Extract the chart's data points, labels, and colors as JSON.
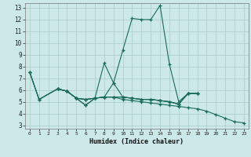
{
  "xlabel": "Humidex (Indice chaleur)",
  "bg_color": "#cce8e8",
  "grid_color": "#aacccc",
  "line_color": "#1a6b5a",
  "xlim": [
    -0.5,
    23.5
  ],
  "ylim": [
    2.7,
    13.4
  ],
  "xticks": [
    0,
    1,
    2,
    3,
    4,
    5,
    6,
    7,
    8,
    9,
    10,
    11,
    12,
    13,
    14,
    15,
    16,
    17,
    18,
    19,
    20,
    21,
    22,
    23
  ],
  "yticks": [
    3,
    4,
    5,
    6,
    7,
    8,
    9,
    10,
    11,
    12,
    13
  ],
  "series1": [
    [
      0,
      7.5
    ],
    [
      1,
      5.2
    ],
    [
      3,
      6.1
    ],
    [
      4,
      5.9
    ],
    [
      5,
      5.3
    ],
    [
      6,
      5.2
    ],
    [
      7,
      5.3
    ],
    [
      8,
      8.3
    ],
    [
      9,
      6.6
    ],
    [
      10,
      9.4
    ],
    [
      11,
      12.1
    ],
    [
      12,
      12.0
    ],
    [
      13,
      12.0
    ],
    [
      14,
      13.2
    ],
    [
      15,
      8.2
    ],
    [
      16,
      5.0
    ],
    [
      17,
      5.7
    ],
    [
      18,
      5.7
    ]
  ],
  "series2": [
    [
      0,
      7.5
    ],
    [
      1,
      5.2
    ],
    [
      3,
      6.1
    ],
    [
      4,
      5.9
    ],
    [
      5,
      5.3
    ],
    [
      6,
      4.7
    ],
    [
      7,
      5.3
    ],
    [
      8,
      5.4
    ],
    [
      9,
      6.6
    ],
    [
      10,
      5.4
    ],
    [
      11,
      5.3
    ],
    [
      12,
      5.2
    ],
    [
      13,
      5.2
    ],
    [
      14,
      5.1
    ],
    [
      15,
      5.0
    ],
    [
      16,
      4.8
    ],
    [
      17,
      5.7
    ],
    [
      18,
      5.7
    ]
  ],
  "series3": [
    [
      3,
      6.1
    ],
    [
      4,
      5.9
    ],
    [
      5,
      5.3
    ],
    [
      6,
      5.2
    ],
    [
      7,
      5.3
    ],
    [
      8,
      5.4
    ],
    [
      9,
      5.4
    ],
    [
      10,
      5.4
    ],
    [
      11,
      5.3
    ],
    [
      12,
      5.2
    ],
    [
      13,
      5.2
    ],
    [
      14,
      5.1
    ],
    [
      15,
      5.0
    ],
    [
      16,
      4.8
    ],
    [
      17,
      5.7
    ],
    [
      18,
      5.7
    ]
  ],
  "series4": [
    [
      3,
      6.1
    ],
    [
      4,
      5.9
    ],
    [
      5,
      5.3
    ],
    [
      6,
      5.2
    ],
    [
      7,
      5.3
    ],
    [
      8,
      5.4
    ],
    [
      9,
      5.4
    ],
    [
      10,
      5.4
    ],
    [
      11,
      5.3
    ],
    [
      12,
      5.2
    ],
    [
      13,
      5.2
    ],
    [
      14,
      5.1
    ],
    [
      15,
      5.0
    ],
    [
      16,
      4.8
    ],
    [
      17,
      5.7
    ],
    [
      18,
      5.7
    ]
  ],
  "series5": [
    [
      0,
      7.5
    ],
    [
      1,
      5.2
    ],
    [
      3,
      6.1
    ],
    [
      4,
      5.9
    ],
    [
      5,
      5.3
    ],
    [
      6,
      4.7
    ],
    [
      7,
      5.3
    ],
    [
      8,
      5.4
    ],
    [
      9,
      5.4
    ],
    [
      10,
      5.2
    ],
    [
      11,
      5.1
    ],
    [
      12,
      5.0
    ],
    [
      13,
      4.9
    ],
    [
      14,
      4.8
    ],
    [
      15,
      4.7
    ],
    [
      16,
      4.6
    ],
    [
      17,
      4.5
    ],
    [
      18,
      4.4
    ],
    [
      19,
      4.2
    ],
    [
      20,
      3.9
    ],
    [
      21,
      3.6
    ],
    [
      22,
      3.3
    ],
    [
      23,
      3.2
    ]
  ]
}
